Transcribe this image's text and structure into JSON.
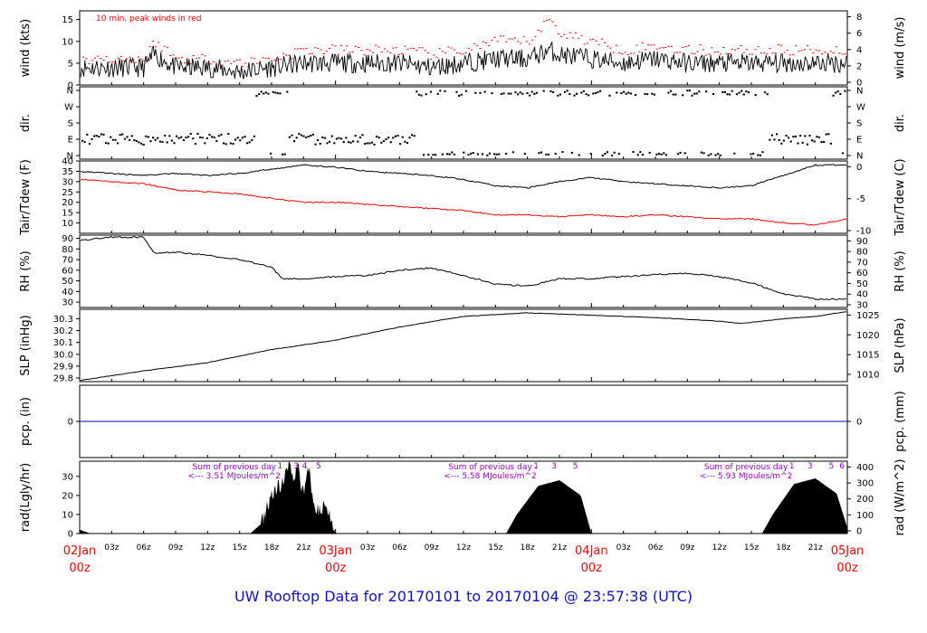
{
  "title": "UW Rooftop Data for 20170101  to  20170104 @ 23:57:38  (UTC)",
  "colors": {
    "frame": "#000000",
    "series": "#000000",
    "dewpoint": "#ff0000",
    "peak": "#ff0000",
    "precip": "#0000cc",
    "date": "#ff0000",
    "annotation": "#9900cc",
    "title": "#1010d0"
  },
  "time_axis": {
    "date_labels": [
      {
        "date": "02Jan",
        "time": "00z",
        "hour": 0
      },
      {
        "date": "03Jan",
        "time": "00z",
        "hour": 24
      },
      {
        "date": "04Jan",
        "time": "00z",
        "hour": 48
      },
      {
        "date": "05Jan",
        "time": "00z",
        "hour": 72
      }
    ],
    "hour_ticks": [
      {
        "label": "03z",
        "hour": 3
      },
      {
        "label": "06z",
        "hour": 6
      },
      {
        "label": "09z",
        "hour": 9
      },
      {
        "label": "12z",
        "hour": 12
      },
      {
        "label": "15z",
        "hour": 15
      },
      {
        "label": "18z",
        "hour": 18
      },
      {
        "label": "21z",
        "hour": 21
      },
      {
        "label": "03z",
        "hour": 27
      },
      {
        "label": "06z",
        "hour": 30
      },
      {
        "label": "09z",
        "hour": 33
      },
      {
        "label": "12z",
        "hour": 36
      },
      {
        "label": "15z",
        "hour": 39
      },
      {
        "label": "18z",
        "hour": 42
      },
      {
        "label": "21z",
        "hour": 45
      },
      {
        "label": "03z",
        "hour": 51
      },
      {
        "label": "06z",
        "hour": 54
      },
      {
        "label": "09z",
        "hour": 57
      },
      {
        "label": "12z",
        "hour": 60
      },
      {
        "label": "15z",
        "hour": 63
      },
      {
        "label": "18z",
        "hour": 66
      },
      {
        "label": "21z",
        "hour": 69
      }
    ]
  },
  "chart_data": [
    {
      "type": "line",
      "key": "wind",
      "ylabel": "wind (kts)",
      "ylabel_right": "wind (m/s)",
      "ylim": [
        0,
        17
      ],
      "left_ticks": [
        "0",
        "5",
        "10",
        "15"
      ],
      "right_ticks": [
        "0",
        "2",
        "4",
        "6",
        "8"
      ],
      "annotation": "10 min. peak winds in red",
      "series": [
        {
          "name": "wind (kts)",
          "x": [
            0,
            3,
            6,
            7,
            9,
            12,
            15,
            18,
            21,
            24,
            27,
            30,
            33,
            36,
            39,
            42,
            44,
            45,
            48,
            51,
            54,
            57,
            60,
            63,
            66,
            69,
            72
          ],
          "y": [
            4,
            4,
            4,
            7,
            4,
            4,
            3,
            4,
            5,
            5,
            5,
            5,
            4,
            5,
            6,
            6,
            8,
            7,
            6,
            5,
            6,
            5,
            5,
            5,
            5,
            5,
            5
          ]
        },
        {
          "name": "10 min. peak winds",
          "x": [
            0,
            3,
            6,
            7,
            9,
            12,
            15,
            18,
            21,
            24,
            27,
            30,
            33,
            36,
            39,
            42,
            44,
            45,
            48,
            51,
            54,
            57,
            60,
            63,
            66,
            69,
            72
          ],
          "y": [
            6,
            6,
            6,
            10,
            6,
            6,
            5,
            6,
            8,
            8,
            8,
            8,
            7,
            8,
            10,
            10,
            15,
            12,
            10,
            8,
            9,
            8,
            8,
            8,
            8,
            8,
            8
          ]
        }
      ]
    },
    {
      "type": "scatter",
      "key": "dir",
      "ylabel": "dir.",
      "ylabel_right": "dir.",
      "left_ticks": [
        "N",
        "E",
        "S",
        "W",
        "N"
      ],
      "right_ticks": [
        "N",
        "E",
        "S",
        "W",
        "N"
      ],
      "series": [
        {
          "name": "direction",
          "x": [
            0,
            3,
            6,
            9,
            12,
            15,
            18,
            21,
            24,
            27,
            30,
            33,
            36,
            39,
            42,
            45,
            48,
            51,
            54,
            57,
            60,
            63,
            66,
            69,
            72
          ],
          "y": [
            "E",
            "E",
            "E",
            "E",
            "E",
            "E",
            "N",
            "E",
            "E",
            "E",
            "E",
            "N",
            "N",
            "N",
            "N",
            "N",
            "N",
            "N",
            "N",
            "N",
            "N",
            "N",
            "E",
            "E",
            "N"
          ]
        }
      ]
    },
    {
      "type": "line",
      "key": "temp",
      "ylabel": "Tair/Tdew (F)",
      "ylabel_right": "Tair/Tdew (C)",
      "ylim": [
        5,
        40
      ],
      "left_ticks": [
        "10",
        "15",
        "20",
        "25",
        "30",
        "35",
        "40"
      ],
      "right_ticks": [
        "-10",
        "-5",
        "0"
      ],
      "series": [
        {
          "name": "Tair",
          "x": [
            0,
            3,
            6,
            9,
            12,
            15,
            18,
            21,
            24,
            27,
            30,
            33,
            36,
            39,
            42,
            45,
            48,
            51,
            54,
            57,
            60,
            63,
            66,
            69,
            72
          ],
          "y": [
            35,
            34,
            33,
            34,
            33,
            34,
            36,
            38,
            37,
            35,
            34,
            33,
            31,
            28,
            27,
            30,
            32,
            30,
            29,
            28,
            27,
            28,
            33,
            38,
            38
          ]
        },
        {
          "name": "Tdew",
          "x": [
            0,
            3,
            6,
            9,
            12,
            15,
            18,
            21,
            24,
            27,
            30,
            33,
            36,
            39,
            42,
            45,
            48,
            51,
            54,
            57,
            60,
            63,
            66,
            69,
            72
          ],
          "y": [
            31,
            30,
            29,
            26,
            25,
            24,
            22,
            20,
            20,
            19,
            18,
            17,
            16,
            14,
            14,
            13,
            14,
            13,
            14,
            13,
            12,
            12,
            10,
            9,
            12
          ]
        }
      ]
    },
    {
      "type": "line",
      "key": "rh",
      "ylabel": "RH (%)",
      "ylabel_right": "RH (%)",
      "ylim": [
        25,
        93
      ],
      "left_ticks": [
        "30",
        "40",
        "50",
        "60",
        "70",
        "80",
        "90"
      ],
      "right_ticks": [
        "30",
        "40",
        "50",
        "60",
        "70",
        "80",
        "90"
      ],
      "series": [
        {
          "name": "RH",
          "x": [
            0,
            3,
            6,
            7,
            9,
            12,
            15,
            18,
            19,
            21,
            24,
            27,
            30,
            33,
            36,
            39,
            42,
            45,
            48,
            51,
            54,
            57,
            60,
            63,
            66,
            69,
            72
          ],
          "y": [
            88,
            91,
            91,
            76,
            77,
            74,
            70,
            63,
            52,
            52,
            54,
            55,
            60,
            62,
            55,
            47,
            45,
            52,
            52,
            54,
            56,
            57,
            54,
            48,
            38,
            33,
            33
          ]
        }
      ]
    },
    {
      "type": "line",
      "key": "slp",
      "ylabel": "SLP (inHg)",
      "ylabel_right": "SLP (hPa)",
      "ylim": [
        29.77,
        30.38
      ],
      "left_ticks": [
        "29.8",
        "29.9",
        "30.0",
        "30.1",
        "30.2",
        "30.3"
      ],
      "right_ticks": [
        "1010",
        "1015",
        "1020",
        "1025"
      ],
      "series": [
        {
          "name": "SLP",
          "x": [
            0,
            6,
            12,
            18,
            24,
            30,
            36,
            42,
            48,
            54,
            60,
            62,
            66,
            69,
            72
          ],
          "y": [
            29.78,
            29.86,
            29.93,
            30.04,
            30.12,
            30.23,
            30.32,
            30.35,
            30.33,
            30.31,
            30.28,
            30.26,
            30.3,
            30.32,
            30.36
          ]
        }
      ]
    },
    {
      "type": "line",
      "key": "pcp",
      "ylabel": "pcp. (in)",
      "ylabel_right": "pcp. (mm)",
      "ylim": [
        -1,
        1
      ],
      "left_ticks": [
        "0"
      ],
      "right_ticks": [
        "0"
      ],
      "series": [
        {
          "name": "precipitation",
          "x": [
            0,
            72
          ],
          "y": [
            0,
            0
          ]
        }
      ]
    },
    {
      "type": "area",
      "key": "rad",
      "ylabel": "rad(Lgly/hr)",
      "ylabel_right": "rad (W/m^2)",
      "ylim": [
        0,
        38
      ],
      "left_ticks": [
        "0",
        "10",
        "20",
        "30"
      ],
      "right_ticks": [
        "0",
        "100",
        "200",
        "300",
        "400"
      ],
      "series": [
        {
          "name": "solar radiation",
          "x": [
            0,
            0.5,
            1,
            16,
            17,
            18,
            19,
            19.5,
            20,
            20.5,
            21,
            21.5,
            22,
            22.5,
            23,
            23.5,
            24,
            40,
            41,
            43,
            45,
            47,
            48,
            64,
            65,
            67,
            69,
            71,
            72
          ],
          "y": [
            2,
            1,
            0,
            0,
            5,
            20,
            27,
            36,
            30,
            34,
            20,
            34,
            15,
            12,
            16,
            8,
            0,
            0,
            10,
            25,
            28,
            20,
            0,
            0,
            10,
            26,
            29,
            21,
            3
          ]
        }
      ],
      "annotations": [
        {
          "label": "Sum of previous day",
          "value": "<--- 3.51 MJoules/m^2"
        },
        {
          "label": "Sum of previous day",
          "value": "<--- 5.58 MJoules/m^2"
        },
        {
          "label": "Sum of previous day",
          "value": "<--- 5.93 MJoules/m^2"
        }
      ],
      "hour_marks": [
        {
          "label": "1",
          "hour": 18.8
        },
        {
          "label": "3",
          "hour": 20.3
        },
        {
          "label": "4",
          "hour": 21.1
        },
        {
          "label": "5",
          "hour": 22.4
        },
        {
          "label": "1",
          "hour": 42.8
        },
        {
          "label": "3",
          "hour": 44.5
        },
        {
          "label": "5",
          "hour": 46.5
        },
        {
          "label": "1",
          "hour": 66.8
        },
        {
          "label": "3",
          "hour": 68.5
        },
        {
          "label": "5",
          "hour": 70.5
        },
        {
          "label": "6",
          "hour": 71.5
        }
      ]
    }
  ]
}
